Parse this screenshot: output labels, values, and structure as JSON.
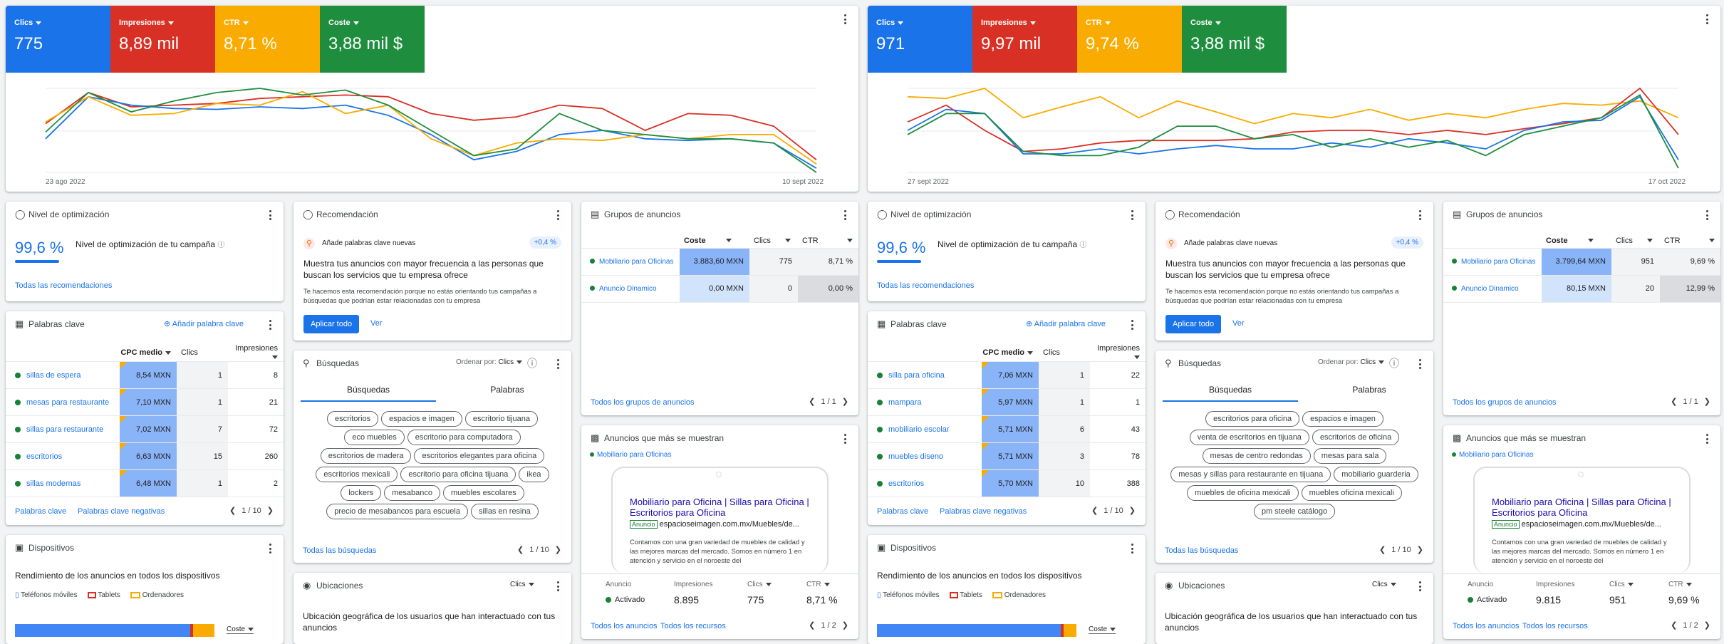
{
  "panels": [
    {
      "metrics": [
        {
          "label": "Clics",
          "value": "775",
          "color": "#1a73e8"
        },
        {
          "label": "Impresiones",
          "value": "8,89 mil",
          "color": "#d93025"
        },
        {
          "label": "CTR",
          "value": "8,71 %",
          "color": "#f9ab00"
        },
        {
          "label": "Coste",
          "value": "3,88 mil $",
          "color": "#1e8e3e"
        }
      ],
      "chart_data": {
        "type": "line",
        "x_start": "23 ago 2022",
        "x_end": "10 sept 2022",
        "series": [
          {
            "color": "#d93025",
            "values": [
              0.42,
              0.05,
              0.22,
              0.2,
              0.18,
              0.12,
              0.1,
              0.08,
              0.1,
              0.3,
              0.38,
              0.34,
              0.2,
              0.24,
              0.5,
              0.3,
              0.32,
              0.45,
              0.85
            ]
          },
          {
            "color": "#1a73e8",
            "values": [
              0.6,
              0.1,
              0.2,
              0.24,
              0.25,
              0.22,
              0.24,
              0.2,
              0.32,
              0.55,
              0.85,
              0.75,
              0.55,
              0.5,
              0.6,
              0.62,
              0.6,
              0.65,
              0.95
            ]
          },
          {
            "color": "#f9ab00",
            "values": [
              0.4,
              0.1,
              0.32,
              0.3,
              0.18,
              0.2,
              0.04,
              0.3,
              0.2,
              0.6,
              0.8,
              0.65,
              0.6,
              0.62,
              0.55,
              0.6,
              0.55,
              0.55,
              0.9
            ]
          },
          {
            "color": "#1e8e3e",
            "values": [
              0.52,
              0.05,
              0.28,
              0.15,
              0.05,
              0.0,
              0.08,
              0.02,
              0.2,
              0.5,
              0.8,
              0.72,
              0.3,
              0.5,
              0.55,
              0.6,
              0.6,
              0.65,
              1.0
            ]
          }
        ]
      },
      "optimization": {
        "title": "Nivel de optimización",
        "value": "99,6 %",
        "label": "Nivel de optimización de tu campaña",
        "link": "Todas las recomendaciones"
      },
      "recommendation": {
        "title": "Recomendación",
        "item": "Añade palabras clave nuevas",
        "badge": "+0,4 %",
        "headline": "Muestra tus anuncios con mayor frecuencia a las personas que buscan los servicios que tu empresa ofrece",
        "desc": "Te hacemos esta recomendación porque no estás orientando tus campañas a búsquedas que podrían estar relacionadas con tu empresa",
        "apply": "Aplicar todo",
        "view": "Ver"
      },
      "adgroups": {
        "title": "Grupos de anuncios",
        "cols": [
          "Coste",
          "Clics",
          "CTR"
        ],
        "rows": [
          {
            "name": "Mobiliario para Oficinas",
            "cost": "3.883,60 MXN",
            "clicks": "775",
            "ctr": "8,71 %"
          },
          {
            "name": "Anuncio Dinamico",
            "cost": "0,00 MXN",
            "clicks": "0",
            "ctr": "0,00 %"
          }
        ],
        "link": "Todos los grupos de anuncios",
        "pager": "1 / 1"
      },
      "keywords": {
        "title": "Palabras clave",
        "add": "Añadir palabra clave",
        "cols": [
          "CPC medio",
          "Clics",
          "Impresiones"
        ],
        "rows": [
          {
            "kw": "sillas de espera",
            "cpc": "8,54 MXN",
            "clicks": "1",
            "imp": "8"
          },
          {
            "kw": "mesas para restaurante",
            "cpc": "7,10 MXN",
            "clicks": "1",
            "imp": "21"
          },
          {
            "kw": "sillas para restaurante",
            "cpc": "7,02 MXN",
            "clicks": "7",
            "imp": "72"
          },
          {
            "kw": "escritorios",
            "cpc": "6,63 MXN",
            "clicks": "15",
            "imp": "260"
          },
          {
            "kw": "sillas modernas",
            "cpc": "6,48 MXN",
            "clicks": "1",
            "imp": "2"
          }
        ],
        "link1": "Palabras clave",
        "link2": "Palabras clave negativas",
        "pager": "1 / 10"
      },
      "searches": {
        "title": "Búsquedas",
        "sort": "Ordenar por:",
        "sortval": "Clics",
        "tab1": "Búsquedas",
        "tab2": "Palabras",
        "chips": [
          "escritorios",
          "espacios e imagen",
          "escritorio tijuana",
          "eco muebles",
          "escritorio para computadora",
          "escritorios de madera",
          "escritorios elegantes para oficina",
          "escritorios mexicali",
          "escritorio para oficina tijuana",
          "ikea",
          "lockers",
          "mesabanco",
          "muebles escolares",
          "precio de mesabancos para escuela",
          "sillas en resina"
        ],
        "link": "Todas las búsquedas",
        "pager": "1 / 10"
      },
      "topads": {
        "title": "Anuncios que más se muestran",
        "group": "Mobiliario para Oficinas",
        "ad_title": "Mobiliario para Oficina | Sillas para Oficina | Escritorios para Oficina",
        "ad_badge": "Anuncio",
        "ad_url": "espacioseimagen.com.mx/Muebles/de...",
        "ad_desc": "Contamos con una gran variedad de muebles de calidad y las mejores marcas del mercado. Somos en número 1 en atención y servicio en el noroeste del",
        "c1": "Anuncio",
        "c2": "Impresiones",
        "c3": "Clics",
        "c4": "CTR",
        "status": "Activado",
        "imp": "8.895",
        "clicks": "775",
        "ctr": "8,71 %",
        "link1": "Todos los anuncios",
        "link2": "Todos los recursos",
        "pager": "1 / 2"
      },
      "devices": {
        "title": "Dispositivos",
        "subtitle": "Rendimiento de los anuncios en todos los dispositivos",
        "l1": "Teléfonos móviles",
        "l2": "Tablets",
        "l3": "Ordenadores",
        "metric": "Coste",
        "mobile_share": 0.88
      },
      "locations": {
        "title": "Ubicaciones",
        "metric": "Clics",
        "subtitle": "Ubicación geográfica de los usuarios que han interactuado con tus anuncios"
      }
    },
    {
      "metrics": [
        {
          "label": "Clics",
          "value": "971",
          "color": "#1a73e8"
        },
        {
          "label": "Impresiones",
          "value": "9,97 mil",
          "color": "#d93025"
        },
        {
          "label": "CTR",
          "value": "9,74 %",
          "color": "#f9ab00"
        },
        {
          "label": "Coste",
          "value": "3,88 mil $",
          "color": "#1e8e3e"
        }
      ],
      "chart_data": {
        "type": "line",
        "x_start": "27 sept 2022",
        "x_end": "17 oct 2022",
        "series": [
          {
            "color": "#f9ab00",
            "values": [
              0.1,
              0.12,
              0.0,
              0.35,
              0.22,
              0.1,
              0.35,
              0.15,
              0.28,
              0.42,
              0.3,
              0.35,
              0.25,
              0.38,
              0.3,
              0.35,
              0.25,
              0.18,
              0.2,
              0.15,
              0.35
            ]
          },
          {
            "color": "#d93025",
            "values": [
              0.4,
              0.2,
              0.5,
              0.75,
              0.72,
              0.65,
              0.62,
              0.62,
              0.62,
              0.6,
              0.52,
              0.5,
              0.5,
              0.55,
              0.5,
              0.55,
              0.48,
              0.42,
              0.35,
              0.0,
              0.55
            ]
          },
          {
            "color": "#1a73e8",
            "values": [
              0.5,
              0.25,
              0.3,
              0.78,
              0.78,
              0.72,
              0.78,
              0.72,
              0.68,
              0.72,
              0.72,
              0.65,
              0.7,
              0.6,
              0.65,
              0.72,
              0.5,
              0.4,
              0.38,
              0.1,
              0.85
            ]
          },
          {
            "color": "#1e8e3e",
            "values": [
              0.55,
              0.3,
              0.3,
              0.75,
              0.8,
              0.8,
              0.7,
              0.45,
              0.45,
              0.6,
              0.55,
              0.7,
              0.6,
              0.7,
              0.62,
              0.8,
              0.55,
              0.45,
              0.35,
              0.08,
              0.95
            ]
          }
        ]
      },
      "optimization": {
        "title": "Nivel de optimización",
        "value": "99,6 %",
        "label": "Nivel de optimización de tu campaña",
        "link": "Todas las recomendaciones"
      },
      "recommendation": {
        "title": "Recomendación",
        "item": "Añade palabras clave nuevas",
        "badge": "+0,4 %",
        "headline": "Muestra tus anuncios con mayor frecuencia a las personas que buscan los servicios que tu empresa ofrece",
        "desc": "Te hacemos esta recomendación porque no estás orientando tus campañas a búsquedas que podrían estar relacionadas con tu empresa",
        "apply": "Aplicar todo",
        "view": "Ver"
      },
      "adgroups": {
        "title": "Grupos de anuncios",
        "cols": [
          "Coste",
          "Clics",
          "CTR"
        ],
        "rows": [
          {
            "name": "Mobiliario para Oficinas",
            "cost": "3.799,64 MXN",
            "clicks": "951",
            "ctr": "9,69 %"
          },
          {
            "name": "Anuncio Dinamico",
            "cost": "80,15 MXN",
            "clicks": "20",
            "ctr": "12,99 %"
          }
        ],
        "link": "Todos los grupos de anuncios",
        "pager": "1 / 1"
      },
      "keywords": {
        "title": "Palabras clave",
        "add": "Añadir palabra clave",
        "cols": [
          "CPC medio",
          "Clics",
          "Impresiones"
        ],
        "rows": [
          {
            "kw": "silla para oficina",
            "cpc": "7,06 MXN",
            "clicks": "1",
            "imp": "22"
          },
          {
            "kw": "mampara",
            "cpc": "5,97 MXN",
            "clicks": "1",
            "imp": "1"
          },
          {
            "kw": "mobiliario escolar",
            "cpc": "5,71 MXN",
            "clicks": "6",
            "imp": "43"
          },
          {
            "kw": "muebles diseno",
            "cpc": "5,71 MXN",
            "clicks": "3",
            "imp": "78"
          },
          {
            "kw": "escritorios",
            "cpc": "5,70 MXN",
            "clicks": "10",
            "imp": "388"
          }
        ],
        "link1": "Palabras clave",
        "link2": "Palabras clave negativas",
        "pager": "1 / 10"
      },
      "searches": {
        "title": "Búsquedas",
        "sort": "Ordenar por:",
        "sortval": "Clics",
        "tab1": "Búsquedas",
        "tab2": "Palabras",
        "chips": [
          "escritorios para oficina",
          "espacios e imagen",
          "venta de escritorios en tijuana",
          "escritorios de oficina",
          "mesas de centro redondas",
          "mesas para sala",
          "mesas y sillas para restaurante en tijuana",
          "mobiliario guarderia",
          "muebles de oficina mexicali",
          "muebles oficina mexicali",
          "pm steele catálogo"
        ],
        "link": "Todas las búsquedas",
        "pager": "1 / 10"
      },
      "topads": {
        "title": "Anuncios que más se muestran",
        "group": "Mobiliario para Oficinas",
        "ad_title": "Mobiliario para Oficina | Sillas para Oficina | Escritorios para Oficina",
        "ad_badge": "Anuncio",
        "ad_url": "espacioseimagen.com.mx/Muebles/de...",
        "ad_desc": "Contamos con una gran variedad de muebles de calidad y las mejores marcas del mercado. Somos en número 1 en atención y servicio en el noroeste del",
        "c1": "Anuncio",
        "c2": "Impresiones",
        "c3": "Clics",
        "c4": "CTR",
        "status": "Activado",
        "imp": "9.815",
        "clicks": "951",
        "ctr": "9,69 %",
        "link1": "Todos los anuncios",
        "link2": "Todos los recursos",
        "pager": "1 / 2"
      },
      "devices": {
        "title": "Dispositivos",
        "subtitle": "Rendimiento de los anuncios en todos los dispositivos",
        "l1": "Teléfonos móviles",
        "l2": "Tablets",
        "l3": "Ordenadores",
        "metric": "Coste",
        "mobile_share": 0.92
      },
      "locations": {
        "title": "Ubicaciones",
        "metric": "Clics",
        "subtitle": "Ubicación geográfica de los usuarios que han interactuado con tus anuncios"
      }
    }
  ]
}
